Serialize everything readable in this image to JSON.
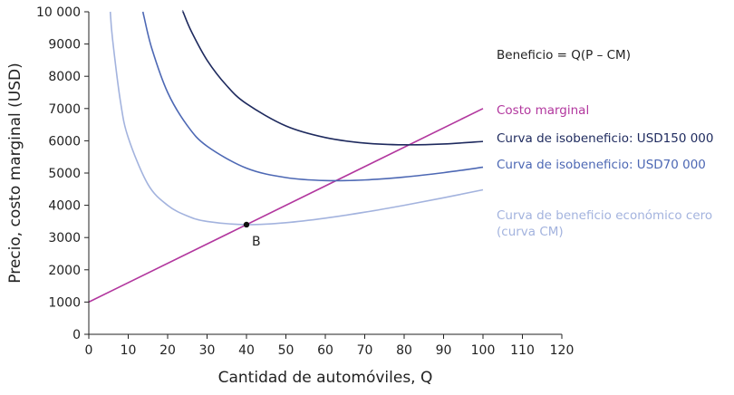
{
  "chart_data": {
    "type": "line",
    "xlabel": "Cantidad de automóviles, Q",
    "ylabel": "Precio, costo marginal (USD)",
    "xlim": [
      0,
      120
    ],
    "ylim": [
      0,
      10000
    ],
    "xticks": [
      "0",
      "10",
      "20",
      "30",
      "40",
      "50",
      "60",
      "70",
      "80",
      "90",
      "100",
      "110",
      "120"
    ],
    "yticks": [
      "0",
      "1000",
      "2000",
      "3000",
      "4000",
      "5000",
      "6000",
      "7000",
      "8000",
      "9000",
      "10 000"
    ],
    "grid": false,
    "series": [
      {
        "name": "Costo marginal",
        "color": "#b2379e",
        "x": [
          0,
          100
        ],
        "y": [
          1000,
          7000
        ]
      },
      {
        "name": "Curva de isobeneficio: USD150 000",
        "color": "#1e2a5e",
        "x": [
          23.9,
          24,
          26,
          30,
          35,
          40,
          50,
          60,
          70,
          80,
          90,
          100
        ],
        "y": [
          10000,
          9970,
          9395,
          8500,
          7707,
          7150,
          6460,
          6100,
          5929,
          5875,
          5900,
          5980
        ]
      },
      {
        "name": "Curva de isobeneficio: USD70 000",
        "color": "#4d68b4",
        "x": [
          13.75,
          14,
          16,
          20,
          25,
          30,
          40,
          50,
          60,
          70,
          80,
          90,
          100
        ],
        "y": [
          10000,
          9849,
          8855,
          7500,
          6470,
          5833,
          5150,
          4860,
          4767,
          4786,
          4875,
          5011,
          5180
        ]
      },
      {
        "name": "Curva de beneficio económico cero (curva CM)",
        "color": "#a3b3de",
        "x": [
          5.45,
          6,
          8,
          10,
          15,
          20,
          25,
          30,
          40,
          50,
          60,
          70,
          80,
          90,
          100
        ],
        "y": [
          10000,
          9180,
          7240,
          6100,
          4650,
          4000,
          3670,
          3500,
          3400,
          3460,
          3600,
          3786,
          4000,
          4233,
          4480
        ]
      }
    ],
    "points": [
      {
        "label": "B",
        "x": 40,
        "y": 3400,
        "color": "#111111"
      }
    ],
    "annotations": {
      "formula": "Beneficio = Q(P – CM)",
      "mc": "Costo marginal",
      "iso150": "Curva de isobeneficio: USD150 000",
      "iso70": "Curva de isobeneficio: USD70 000",
      "zero_line1": "Curva de beneficio económico cero",
      "zero_line2": "(curva CM)"
    }
  }
}
